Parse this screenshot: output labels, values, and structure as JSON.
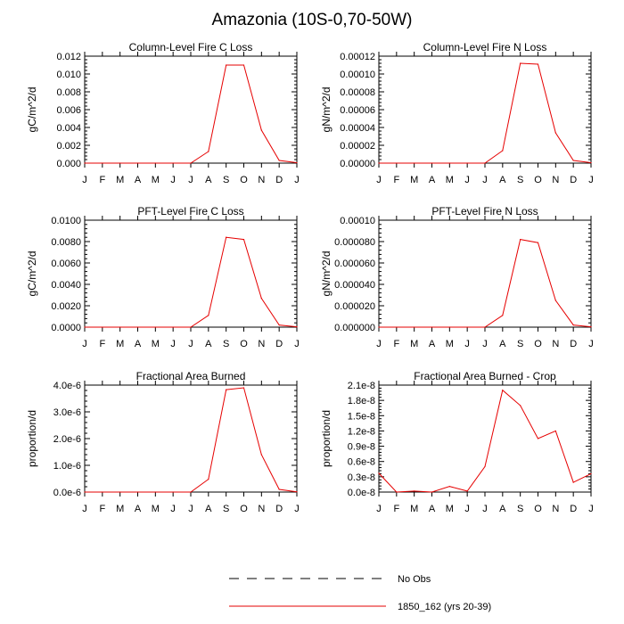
{
  "title": "Amazonia (10S-0,70-50W)",
  "colors": {
    "series": "#e60000",
    "no_obs": "#000000",
    "axis": "#000000"
  },
  "legend": {
    "entries": [
      {
        "label": "No Obs",
        "style": "dashed",
        "color": "#000000"
      },
      {
        "label": "1850_162 (yrs 20-39)",
        "style": "solid",
        "color": "#e60000"
      }
    ],
    "placement": "bottom-center"
  },
  "months": [
    "J",
    "F",
    "M",
    "A",
    "M",
    "J",
    "J",
    "A",
    "S",
    "O",
    "N",
    "D",
    "J"
  ],
  "chart_data": [
    {
      "type": "line",
      "title": "Column-Level Fire C Loss",
      "ylabel": "gC/m^2/d",
      "ylim": [
        0,
        0.012
      ],
      "yticks": [
        "0.000",
        "0.002",
        "0.004",
        "0.006",
        "0.008",
        "0.010",
        "0.012"
      ],
      "categories": [
        "J",
        "F",
        "M",
        "A",
        "M",
        "J",
        "J",
        "A",
        "S",
        "O",
        "N",
        "D",
        "J"
      ],
      "series": [
        {
          "name": "1850_162 (yrs 20-39)",
          "values": [
            0,
            0,
            0,
            0,
            0,
            0,
            0,
            0.0013,
            0.011,
            0.011,
            0.0037,
            0.0003,
            5e-05
          ]
        }
      ]
    },
    {
      "type": "line",
      "title": "Column-Level Fire N Loss",
      "ylabel": "gN/m^2/d",
      "ylim": [
        0,
        0.00012
      ],
      "yticks": [
        "0.00000",
        "0.00002",
        "0.00004",
        "0.00006",
        "0.00008",
        "0.00010",
        "0.00012"
      ],
      "categories": [
        "J",
        "F",
        "M",
        "A",
        "M",
        "J",
        "J",
        "A",
        "S",
        "O",
        "N",
        "D",
        "J"
      ],
      "series": [
        {
          "name": "1850_162 (yrs 20-39)",
          "values": [
            0,
            0,
            0,
            0,
            0,
            0,
            0,
            1.4e-05,
            0.000112,
            0.000111,
            3.4e-05,
            3e-06,
            5e-07
          ]
        }
      ]
    },
    {
      "type": "line",
      "title": "PFT-Level Fire C Loss",
      "ylabel": "gC/m^2/d",
      "ylim": [
        0,
        0.01
      ],
      "yticks": [
        "0.0000",
        "0.0020",
        "0.0040",
        "0.0060",
        "0.0080",
        "0.0100"
      ],
      "categories": [
        "J",
        "F",
        "M",
        "A",
        "M",
        "J",
        "J",
        "A",
        "S",
        "O",
        "N",
        "D",
        "J"
      ],
      "series": [
        {
          "name": "1850_162 (yrs 20-39)",
          "values": [
            0,
            0,
            0,
            0,
            0,
            0,
            0,
            0.0011,
            0.0084,
            0.0082,
            0.0027,
            0.0002,
            3e-05
          ]
        }
      ]
    },
    {
      "type": "line",
      "title": "PFT-Level Fire N Loss",
      "ylabel": "gN/m^2/d",
      "ylim": [
        0,
        0.0001
      ],
      "yticks": [
        "0.000000",
        "0.000020",
        "0.000040",
        "0.000060",
        "0.000080",
        "0.00010"
      ],
      "categories": [
        "J",
        "F",
        "M",
        "A",
        "M",
        "J",
        "J",
        "A",
        "S",
        "O",
        "N",
        "D",
        "J"
      ],
      "series": [
        {
          "name": "1850_162 (yrs 20-39)",
          "values": [
            0,
            0,
            0,
            0,
            0,
            0,
            0,
            1.1e-05,
            8.2e-05,
            7.9e-05,
            2.5e-05,
            2e-06,
            3e-07
          ]
        }
      ]
    },
    {
      "type": "line",
      "title": "Fractional Area Burned",
      "ylabel": "proportion/d",
      "ylim": [
        0,
        4e-06
      ],
      "yticks": [
        "0.0e-6",
        "1.0e-6",
        "2.0e-6",
        "3.0e-6",
        "4.0e-6"
      ],
      "categories": [
        "J",
        "F",
        "M",
        "A",
        "M",
        "J",
        "J",
        "A",
        "S",
        "O",
        "N",
        "D",
        "J"
      ],
      "series": [
        {
          "name": "1850_162 (yrs 20-39)",
          "values": [
            0,
            0,
            0,
            0,
            0,
            0,
            0,
            4.8e-07,
            3.83e-06,
            3.9e-06,
            1.4e-06,
            1e-07,
            1e-08
          ]
        }
      ]
    },
    {
      "type": "line",
      "title": "Fractional Area Burned - Crop",
      "ylabel": "proportion/d",
      "ylim": [
        0,
        2.1e-08
      ],
      "yticks": [
        "0.0e-8",
        "0.3e-8",
        "0.6e-8",
        "0.9e-8",
        "1.2e-8",
        "1.5e-8",
        "1.8e-8",
        "2.1e-8"
      ],
      "categories": [
        "J",
        "F",
        "M",
        "A",
        "M",
        "J",
        "J",
        "A",
        "S",
        "O",
        "N",
        "D",
        "J"
      ],
      "series": [
        {
          "name": "1850_162 (yrs 20-39)",
          "values": [
            3.7e-09,
            0,
            2e-10,
            0,
            1.1e-09,
            2e-10,
            5e-09,
            2e-08,
            1.7e-08,
            1.05e-08,
            1.2e-08,
            1.9e-09,
            3.6e-09
          ]
        }
      ]
    }
  ]
}
